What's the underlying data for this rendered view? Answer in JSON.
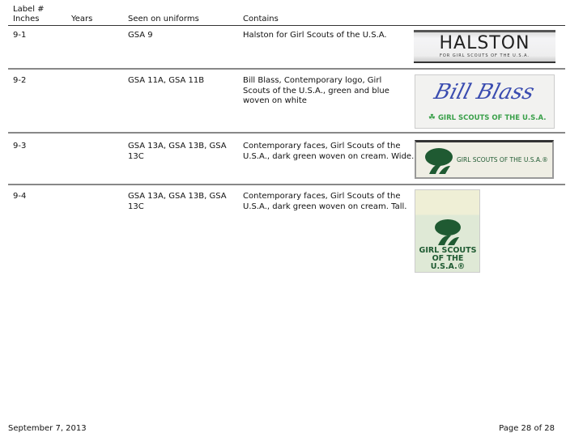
{
  "header": {
    "label_line1": "Label #",
    "col_inches": "Inches",
    "col_years": "Years",
    "col_seen": "Seen on uniforms",
    "col_contains": "Contains"
  },
  "rows": [
    {
      "label": "9-1",
      "years": "",
      "seen": "GSA 9",
      "contains": "Halston for Girl Scouts of the U.S.A.",
      "image_text": [
        "HALSTON",
        "FOR GIRL SCOUTS OF THE U.S.A."
      ]
    },
    {
      "label": "9-2",
      "years": "",
      "seen": "GSA 11A, GSA 11B",
      "contains": "Bill Blass, Contemporary logo, Girl Scouts of the U.S.A., green and blue woven on white",
      "image_text": [
        "Bill Blass",
        "GIRL SCOUTS OF THE U.S.A."
      ]
    },
    {
      "label": "9-3",
      "years": "",
      "seen": "GSA 13A, GSA 13B, GSA 13C",
      "contains": "Contemporary faces, Girl Scouts of the U.S.A., dark green woven on cream. Wide.",
      "image_text": [
        "GIRL SCOUTS OF THE U.S.A.®"
      ]
    },
    {
      "label": "9-4",
      "years": "",
      "seen": "GSA 13A, GSA 13B, GSA 13C",
      "contains": "Contemporary faces, Girl Scouts of the U.S.A., dark green woven on cream. Tall.",
      "image_text": [
        "GIRL SCOUTS",
        "OF THE U.S.A.®"
      ]
    }
  ],
  "footer": {
    "date": "September 7, 2013",
    "page": "Page 28 of 28"
  },
  "colors": {
    "logo_green": "#1f5a32",
    "blass_blue": "#3a4cb0",
    "rule": "#888888"
  }
}
